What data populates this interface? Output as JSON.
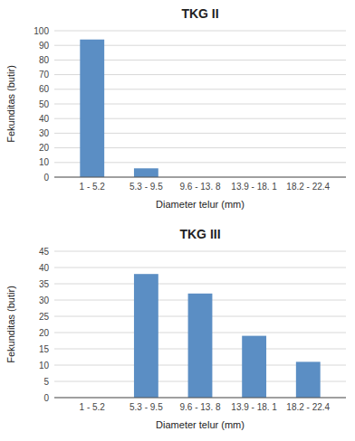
{
  "chart_data": [
    {
      "type": "bar",
      "title": "TKG II",
      "categories": [
        "1 - 5.2",
        "5.3 - 9.5",
        "9.6 - 13. 8",
        "13.9 - 18. 1",
        "18.2 - 22.4"
      ],
      "values": [
        94,
        6,
        0,
        0,
        0
      ],
      "color": "#5b8ec4",
      "xlabel": "Diameter telur (mm)",
      "ylabel": "Fekunditas (butir)",
      "ylim": [
        0,
        100
      ],
      "yticks": [
        0,
        10,
        20,
        30,
        40,
        50,
        60,
        70,
        80,
        90,
        100
      ],
      "grid": true
    },
    {
      "type": "bar",
      "title": "TKG III",
      "categories": [
        "1 - 5.2",
        "5.3 - 9.5",
        "9.6 - 13. 8",
        "13.9 - 18. 1",
        "18.2 - 22.4"
      ],
      "values": [
        0,
        38,
        32,
        19,
        11
      ],
      "color": "#5b8ec4",
      "xlabel": "Diameter telur (mm)",
      "ylabel": "Fekunditas (butir)",
      "ylim": [
        0,
        45
      ],
      "yticks": [
        0,
        5,
        10,
        15,
        20,
        25,
        30,
        35,
        40,
        45
      ],
      "grid": true
    }
  ]
}
